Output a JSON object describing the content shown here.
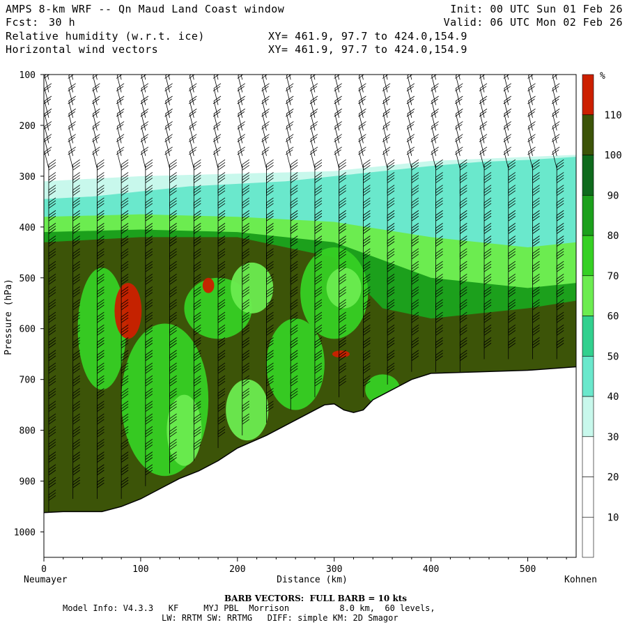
{
  "header": {
    "title": "AMPS 8-km WRF -- Qn Maud Land Coast window",
    "fcst_label": "Fcst:",
    "fcst_value": "30 h",
    "init": "Init: 00 UTC Sun 01 Feb 26",
    "valid": "Valid: 06 UTC Mon 02 Feb 26",
    "field1": "Relative humidity (w.r.t. ice)",
    "field2": "Horizontal wind vectors",
    "xy1": "XY= 461.9, 97.7 to 424.0,154.9",
    "xy2": "XY= 461.9, 97.7 to 424.0,154.9"
  },
  "chart_data": {
    "type": "heatmap",
    "title": "Relative humidity (w.r.t. ice) cross-section with horizontal wind barbs",
    "xlabel": "Distance (km)",
    "ylabel": "Pressure (hPa)",
    "x_range": [
      0,
      550
    ],
    "y_range": [
      100,
      1050
    ],
    "y_inverted": true,
    "x_ticks": [
      0,
      100,
      200,
      300,
      400,
      500
    ],
    "y_ticks": [
      100,
      200,
      300,
      400,
      500,
      600,
      700,
      800,
      900,
      1000
    ],
    "x_left_label": "Neumayer",
    "x_right_label": "Kohnen",
    "colorbar": {
      "unit": "%",
      "levels": [
        10,
        20,
        30,
        40,
        50,
        60,
        70,
        80,
        90,
        100,
        110
      ],
      "colors": [
        "#ffffff",
        "#ffffff",
        "#ffffff",
        "#c8f8ec",
        "#6ae8cc",
        "#32d08e",
        "#6cec50",
        "#36d024",
        "#1ca01c",
        "#0e6a1c",
        "#3c5408",
        "#cc2000"
      ]
    },
    "terrain": [
      {
        "x": 0,
        "p": 962
      },
      {
        "x": 20,
        "p": 960
      },
      {
        "x": 60,
        "p": 960
      },
      {
        "x": 80,
        "p": 950
      },
      {
        "x": 100,
        "p": 935
      },
      {
        "x": 120,
        "p": 915
      },
      {
        "x": 140,
        "p": 895
      },
      {
        "x": 160,
        "p": 880
      },
      {
        "x": 180,
        "p": 860
      },
      {
        "x": 200,
        "p": 835
      },
      {
        "x": 230,
        "p": 810
      },
      {
        "x": 260,
        "p": 780
      },
      {
        "x": 290,
        "p": 750
      },
      {
        "x": 300,
        "p": 748
      },
      {
        "x": 310,
        "p": 760
      },
      {
        "x": 320,
        "p": 765
      },
      {
        "x": 330,
        "p": 760
      },
      {
        "x": 340,
        "p": 740
      },
      {
        "x": 360,
        "p": 720
      },
      {
        "x": 380,
        "p": 700
      },
      {
        "x": 400,
        "p": 688
      },
      {
        "x": 450,
        "p": 685
      },
      {
        "x": 500,
        "p": 682
      },
      {
        "x": 550,
        "p": 675
      }
    ],
    "rh_layers": [
      {
        "label": "30%",
        "color": "#c8f8ec",
        "top": [
          {
            "x": 0,
            "p": 310
          },
          {
            "x": 100,
            "p": 300
          },
          {
            "x": 200,
            "p": 295
          },
          {
            "x": 300,
            "p": 290
          },
          {
            "x": 400,
            "p": 270
          },
          {
            "x": 500,
            "p": 262
          },
          {
            "x": 550,
            "p": 258
          }
        ]
      },
      {
        "label": "40-50%",
        "color": "#6ae8cc",
        "top": [
          {
            "x": 0,
            "p": 345
          },
          {
            "x": 50,
            "p": 340
          },
          {
            "x": 100,
            "p": 330
          },
          {
            "x": 150,
            "p": 320
          },
          {
            "x": 200,
            "p": 315
          },
          {
            "x": 250,
            "p": 310
          },
          {
            "x": 300,
            "p": 300
          },
          {
            "x": 350,
            "p": 290
          },
          {
            "x": 400,
            "p": 280
          },
          {
            "x": 450,
            "p": 272
          },
          {
            "x": 500,
            "p": 268
          },
          {
            "x": 550,
            "p": 262
          }
        ]
      },
      {
        "label": "70%",
        "color": "#6cec50",
        "top": [
          {
            "x": 0,
            "p": 380
          },
          {
            "x": 100,
            "p": 375
          },
          {
            "x": 200,
            "p": 380
          },
          {
            "x": 300,
            "p": 390
          },
          {
            "x": 400,
            "p": 420
          },
          {
            "x": 500,
            "p": 440
          },
          {
            "x": 550,
            "p": 430
          }
        ]
      },
      {
        "label": "90%",
        "color": "#1ca01c",
        "top": [
          {
            "x": 0,
            "p": 410
          },
          {
            "x": 100,
            "p": 405
          },
          {
            "x": 200,
            "p": 410
          },
          {
            "x": 300,
            "p": 430
          },
          {
            "x": 400,
            "p": 500
          },
          {
            "x": 500,
            "p": 520
          },
          {
            "x": 550,
            "p": 510
          }
        ]
      },
      {
        "label": "100%",
        "color": "#3c5408",
        "top": [
          {
            "x": 0,
            "p": 430
          },
          {
            "x": 100,
            "p": 420
          },
          {
            "x": 200,
            "p": 420
          },
          {
            "x": 300,
            "p": 460
          },
          {
            "x": 350,
            "p": 560
          },
          {
            "x": 400,
            "p": 580
          },
          {
            "x": 500,
            "p": 560
          },
          {
            "x": 550,
            "p": 545
          }
        ]
      }
    ],
    "rh_patches": [
      {
        "label": "80%",
        "color": "#36d024",
        "x": 180,
        "p": 560,
        "rx": 35,
        "rp": 60
      },
      {
        "label": "80%",
        "color": "#36d024",
        "x": 60,
        "p": 600,
        "rx": 25,
        "rp": 120
      },
      {
        "label": "70%",
        "color": "#6cec50",
        "x": 215,
        "p": 520,
        "rx": 22,
        "rp": 50
      },
      {
        "label": "80%",
        "color": "#36d024",
        "x": 125,
        "p": 740,
        "rx": 45,
        "rp": 150
      },
      {
        "label": "70%",
        "color": "#6cec50",
        "x": 145,
        "p": 800,
        "rx": 18,
        "rp": 70
      },
      {
        "label": "80%",
        "color": "#36d024",
        "x": 260,
        "p": 670,
        "rx": 30,
        "rp": 90
      },
      {
        "label": "80%",
        "color": "#36d024",
        "x": 300,
        "p": 530,
        "rx": 35,
        "rp": 90
      },
      {
        "label": "70%",
        "color": "#6cec50",
        "x": 310,
        "p": 520,
        "rx": 18,
        "rp": 40
      },
      {
        "label": "70%",
        "color": "#6cec50",
        "x": 210,
        "p": 760,
        "rx": 22,
        "rp": 60
      },
      {
        "label": "80%",
        "color": "#36d024",
        "x": 350,
        "p": 720,
        "rx": 18,
        "rp": 30
      },
      {
        "label": "110%",
        "color": "#cc2000",
        "x": 87,
        "p": 565,
        "rx": 14,
        "rp": 55
      },
      {
        "label": "110%",
        "color": "#cc2000",
        "x": 170,
        "p": 515,
        "rx": 6,
        "rp": 15
      },
      {
        "label": "110%",
        "color": "#cc2000",
        "x": 307,
        "p": 650,
        "rx": 9,
        "rp": 7
      }
    ],
    "barbs": {
      "unit": "kts",
      "full_barb": 10,
      "x_spacing_km": 25,
      "p_spacing_hpa": 25,
      "direction": "easterly"
    }
  },
  "footer": {
    "barb_note": "BARB VECTORS:  FULL BARB = 10 kts",
    "model_info": "Model Info: V4.3.3   KF     MYJ PBL  Morrison          8.0 km,  60 levels,",
    "physics": "LW: RRTM SW: RRTMG   DIFF: simple KM: 2D Smagor"
  }
}
